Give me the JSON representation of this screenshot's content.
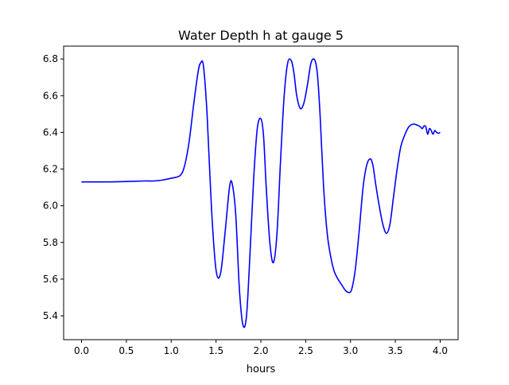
{
  "chart_data": {
    "type": "line",
    "title": "Water Depth h at gauge 5",
    "xlabel": "hours",
    "ylabel": "",
    "xlim": [
      -0.2,
      4.2
    ],
    "ylim": [
      5.27,
      6.87
    ],
    "xticks": [
      0.0,
      0.5,
      1.0,
      1.5,
      2.0,
      2.5,
      3.0,
      3.5,
      4.0
    ],
    "xtick_labels": [
      "0.0",
      "0.5",
      "1.0",
      "1.5",
      "2.0",
      "2.5",
      "3.0",
      "3.5",
      "4.0"
    ],
    "yticks": [
      5.4,
      5.6,
      5.8,
      6.0,
      6.2,
      6.4,
      6.6,
      6.8
    ],
    "ytick_labels": [
      "5.4",
      "5.6",
      "5.8",
      "6.0",
      "6.2",
      "6.4",
      "6.6",
      "6.8"
    ],
    "grid": false,
    "legend": "none",
    "series": [
      {
        "color": "#0000ff",
        "x": [
          0.0,
          0.3,
          0.5,
          0.7,
          0.8,
          0.9,
          1.0,
          1.1,
          1.15,
          1.2,
          1.25,
          1.3,
          1.33,
          1.36,
          1.4,
          1.45,
          1.5,
          1.55,
          1.6,
          1.65,
          1.68,
          1.72,
          1.76,
          1.8,
          1.84,
          1.88,
          1.92,
          1.96,
          2.0,
          2.03,
          2.06,
          2.1,
          2.14,
          2.18,
          2.22,
          2.26,
          2.3,
          2.34,
          2.37,
          2.4,
          2.44,
          2.48,
          2.52,
          2.56,
          2.6,
          2.63,
          2.66,
          2.7,
          2.74,
          2.78,
          2.82,
          2.86,
          2.9,
          2.95,
          3.0,
          3.03,
          3.06,
          3.1,
          3.14,
          3.18,
          3.22,
          3.25,
          3.28,
          3.32,
          3.36,
          3.4,
          3.44,
          3.48,
          3.52,
          3.56,
          3.6,
          3.65,
          3.7,
          3.74,
          3.78,
          3.8,
          3.82,
          3.84,
          3.86,
          3.88,
          3.9,
          3.92,
          3.94,
          3.96,
          3.98,
          4.0
        ],
        "y": [
          6.13,
          6.13,
          6.132,
          6.135,
          6.135,
          6.14,
          6.15,
          6.165,
          6.22,
          6.35,
          6.55,
          6.73,
          6.78,
          6.76,
          6.5,
          5.98,
          5.65,
          5.63,
          5.85,
          6.1,
          6.12,
          5.95,
          5.55,
          5.35,
          5.4,
          5.75,
          6.15,
          6.42,
          6.475,
          6.38,
          6.1,
          5.8,
          5.69,
          5.85,
          6.25,
          6.6,
          6.78,
          6.79,
          6.72,
          6.6,
          6.53,
          6.56,
          6.66,
          6.78,
          6.795,
          6.72,
          6.5,
          6.1,
          5.85,
          5.72,
          5.64,
          5.6,
          5.57,
          5.535,
          5.53,
          5.58,
          5.68,
          5.88,
          6.1,
          6.22,
          6.255,
          6.22,
          6.12,
          6.0,
          5.9,
          5.85,
          5.9,
          6.05,
          6.2,
          6.32,
          6.38,
          6.43,
          6.445,
          6.44,
          6.43,
          6.42,
          6.435,
          6.43,
          6.39,
          6.42,
          6.41,
          6.39,
          6.41,
          6.4,
          6.395,
          6.4
        ]
      }
    ]
  }
}
